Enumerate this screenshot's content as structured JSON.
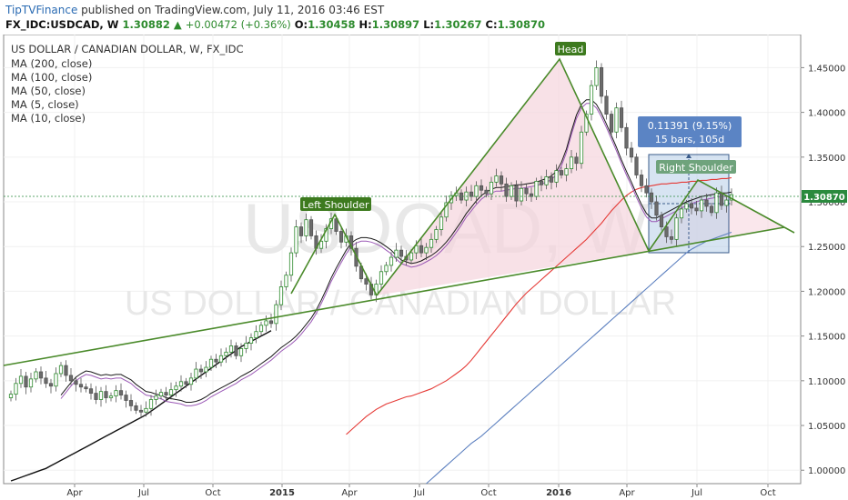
{
  "header": {
    "brand": "TipTVFinance",
    "published": " published on TradingView.com, July 11, 2016 03:46 EST",
    "symbol": "FX_IDC:USDCAD, W",
    "last": "1.30882",
    "change": "+0.00472 (+0.36%)",
    "open_label": "O:",
    "open": "1.30458",
    "high_label": "H:",
    "high": "1.30897",
    "low_label": "L:",
    "low": "1.30267",
    "close_label": "C:",
    "close": "1.30870"
  },
  "chart_data": {
    "type": "candlestick",
    "title": "US DOLLAR / CANADIAN DOLLAR, W, FX_IDC",
    "watermark_symbol": "USDCAD, W",
    "watermark_name": "US DOLLAR / CANADIAN DOLLAR",
    "indicators": [
      "MA (200, close)",
      "MA (100, close)",
      "MA (50, close)",
      "MA (5, close)",
      "MA (10, close)"
    ],
    "x_ticks": [
      "Apr",
      "Jul",
      "Oct",
      "2015",
      "Apr",
      "Jul",
      "Oct",
      "2016",
      "Apr",
      "Jul",
      "Oct"
    ],
    "y_ticks": [
      "1.45000",
      "1.40000",
      "1.35000",
      "1.30000",
      "1.25000",
      "1.20000",
      "1.15000",
      "1.10000",
      "1.05000",
      "1.00000"
    ],
    "y_range": [
      0.985,
      1.487
    ],
    "last_price": "1.30870",
    "close_series": [
      1.085,
      1.097,
      1.105,
      1.093,
      1.102,
      1.11,
      1.103,
      1.097,
      1.094,
      1.108,
      1.117,
      1.106,
      1.1,
      1.096,
      1.093,
      1.091,
      1.086,
      1.079,
      1.088,
      1.081,
      1.083,
      1.089,
      1.084,
      1.078,
      1.072,
      1.067,
      1.065,
      1.069,
      1.079,
      1.083,
      1.087,
      1.084,
      1.09,
      1.094,
      1.099,
      1.096,
      1.103,
      1.113,
      1.11,
      1.115,
      1.124,
      1.121,
      1.128,
      1.132,
      1.139,
      1.128,
      1.136,
      1.142,
      1.148,
      1.155,
      1.162,
      1.167,
      1.164,
      1.185,
      1.205,
      1.218,
      1.243,
      1.272,
      1.262,
      1.28,
      1.262,
      1.248,
      1.256,
      1.27,
      1.281,
      1.267,
      1.255,
      1.262,
      1.248,
      1.228,
      1.214,
      1.208,
      1.196,
      1.208,
      1.222,
      1.229,
      1.238,
      1.246,
      1.239,
      1.235,
      1.243,
      1.251,
      1.243,
      1.249,
      1.258,
      1.269,
      1.283,
      1.299,
      1.307,
      1.31,
      1.302,
      1.311,
      1.306,
      1.318,
      1.313,
      1.309,
      1.322,
      1.329,
      1.32,
      1.306,
      1.318,
      1.301,
      1.315,
      1.309,
      1.306,
      1.323,
      1.319,
      1.328,
      1.322,
      1.335,
      1.33,
      1.337,
      1.35,
      1.343,
      1.378,
      1.398,
      1.43,
      1.45,
      1.418,
      1.398,
      1.378,
      1.405,
      1.383,
      1.36,
      1.35,
      1.33,
      1.318,
      1.31,
      1.3,
      1.285,
      1.272,
      1.261,
      1.258,
      1.282,
      1.292,
      1.298,
      1.293,
      1.29,
      1.302,
      1.295,
      1.288,
      1.31,
      1.296,
      1.302,
      1.308
    ],
    "ma10_series": [
      1.08,
      1.087,
      1.094,
      1.1,
      1.104,
      1.107,
      1.106,
      1.104,
      1.102,
      1.103,
      1.102,
      1.103,
      1.103,
      1.1,
      1.097,
      1.092,
      1.088,
      1.084,
      1.083,
      1.081,
      1.08,
      1.077,
      1.076,
      1.075,
      1.074,
      1.072,
      1.072,
      1.073,
      1.075,
      1.078,
      1.082,
      1.085,
      1.088,
      1.091,
      1.094,
      1.097,
      1.101,
      1.104,
      1.107,
      1.111,
      1.115,
      1.119,
      1.123,
      1.128,
      1.133,
      1.137,
      1.141,
      1.146,
      1.152,
      1.159,
      1.166,
      1.175,
      1.186,
      1.198,
      1.211,
      1.222,
      1.232,
      1.242,
      1.25,
      1.254,
      1.256,
      1.256,
      1.255,
      1.253,
      1.25,
      1.246,
      1.242,
      1.236,
      1.231,
      1.229,
      1.227,
      1.228,
      1.23,
      1.233,
      1.236,
      1.24,
      1.245,
      1.251,
      1.258,
      1.266,
      1.274,
      1.283,
      1.29,
      1.297,
      1.303,
      1.307,
      1.31,
      1.312,
      1.312,
      1.313,
      1.314,
      1.315,
      1.315,
      1.316,
      1.317,
      1.318,
      1.32,
      1.322,
      1.325,
      1.33,
      1.34,
      1.355,
      1.375,
      1.393,
      1.405,
      1.41,
      1.41,
      1.405,
      1.395,
      1.383,
      1.37,
      1.357,
      1.343,
      1.33,
      1.318,
      1.305,
      1.293,
      1.283,
      1.278,
      1.278,
      1.281,
      1.284,
      1.287,
      1.29,
      1.293,
      1.296,
      1.298,
      1.3,
      1.302,
      1.303,
      1.304,
      1.305,
      1.306,
      1.306,
      1.307
    ],
    "ma50_series": [
      1.04,
      1.045,
      1.05,
      1.055,
      1.06,
      1.064,
      1.068,
      1.071,
      1.074,
      1.076,
      1.078,
      1.08,
      1.082,
      1.083,
      1.085,
      1.087,
      1.089,
      1.091,
      1.094,
      1.097,
      1.1,
      1.104,
      1.108,
      1.112,
      1.117,
      1.123,
      1.13,
      1.137,
      1.144,
      1.151,
      1.158,
      1.165,
      1.172,
      1.179,
      1.186,
      1.192,
      1.198,
      1.203,
      1.208,
      1.213,
      1.218,
      1.223,
      1.228,
      1.233,
      1.238,
      1.243,
      1.248,
      1.253,
      1.258,
      1.264,
      1.27,
      1.276,
      1.283,
      1.29,
      1.296,
      1.302,
      1.307,
      1.311,
      1.314,
      1.316,
      1.317,
      1.318,
      1.319,
      1.32,
      1.32,
      1.321,
      1.321,
      1.322,
      1.322,
      1.323,
      1.323,
      1.324,
      1.324,
      1.325,
      1.325,
      1.326,
      1.326,
      1.327
    ],
    "ma100_series": [
      0.985,
      0.99,
      0.995,
      1.0,
      1.005,
      1.01,
      1.015,
      1.02,
      1.025,
      1.03,
      1.034,
      1.038,
      1.043,
      1.048,
      1.053,
      1.058,
      1.063,
      1.068,
      1.073,
      1.078,
      1.083,
      1.088,
      1.093,
      1.098,
      1.103,
      1.108,
      1.113,
      1.118,
      1.123,
      1.128,
      1.133,
      1.138,
      1.143,
      1.148,
      1.153,
      1.158,
      1.163,
      1.168,
      1.173,
      1.178,
      1.183,
      1.188,
      1.193,
      1.198,
      1.203,
      1.208,
      1.213,
      1.218,
      1.223,
      1.228,
      1.233,
      1.238,
      1.243,
      1.247,
      1.25,
      1.253,
      1.256,
      1.258,
      1.26,
      1.262,
      1.264,
      1.266
    ],
    "ma200_series": [
      0.988,
      0.99,
      0.992,
      0.994,
      0.996,
      0.998,
      1.0,
      1.002,
      1.005,
      1.008,
      1.011,
      1.014,
      1.017,
      1.02,
      1.023,
      1.026,
      1.029,
      1.032,
      1.035,
      1.038,
      1.041,
      1.044,
      1.047,
      1.05,
      1.053,
      1.056,
      1.059,
      1.062,
      1.066,
      1.07,
      1.074,
      1.078,
      1.082,
      1.086,
      1.09,
      1.094,
      1.098,
      1.102,
      1.106,
      1.11,
      1.114,
      1.118,
      1.122,
      1.126,
      1.13,
      1.134,
      1.138,
      1.141,
      1.144,
      1.147,
      1.15,
      1.153,
      1.156
    ],
    "annotations": {
      "left_shoulder": "Left Shoulder",
      "head": "Head",
      "right_shoulder": "Right Shoulder",
      "measure_line1": "0.11391 (9.15%)",
      "measure_line2": "15 bars, 105d"
    },
    "colors": {
      "ma10": "#1a1a1a",
      "ma5": "#9b59b6",
      "ma50": "#e53935",
      "ma100": "#5b7fbf",
      "ma200": "#111111",
      "pattern": "#4a8a2a",
      "up": "#2e8b2e",
      "down": "#c0392b",
      "label_bg": "#3d7a1e",
      "measure_bg": "#5b84c4",
      "price_tag_bg": "#2b8a3e"
    }
  }
}
